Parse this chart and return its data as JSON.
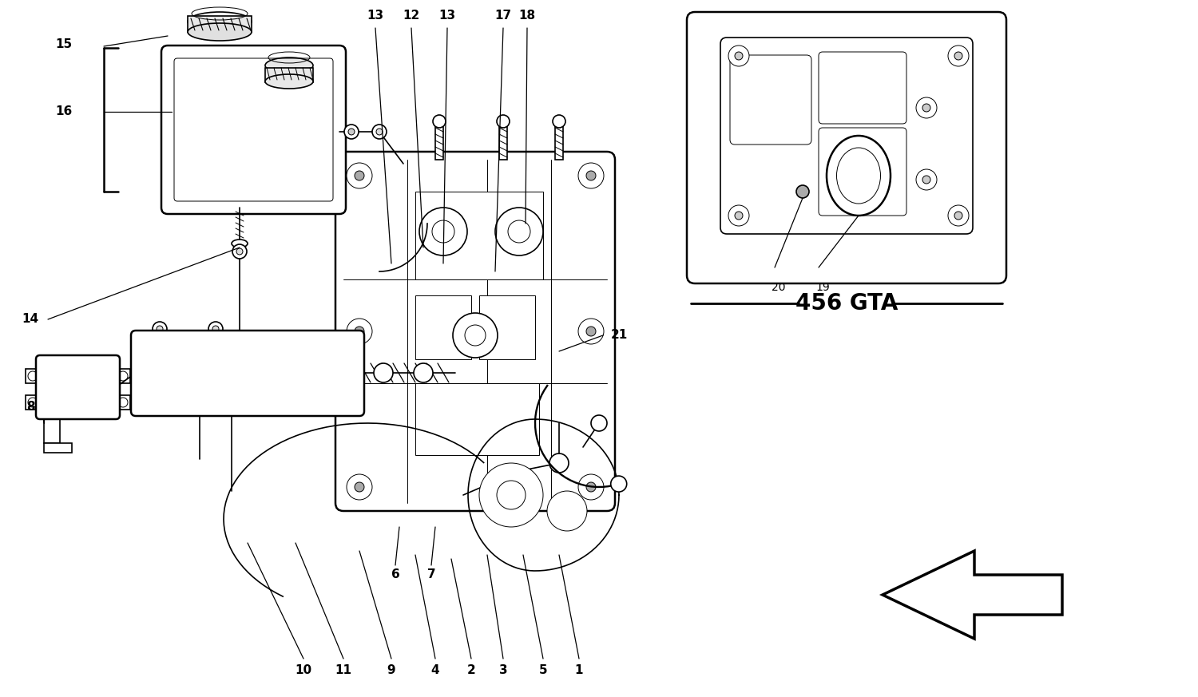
{
  "bg_color": "#ffffff",
  "fig_width": 15.0,
  "fig_height": 8.73,
  "subtitle": "456 GTA",
  "lw_thick": 1.8,
  "lw_med": 1.2,
  "lw_thin": 0.7
}
